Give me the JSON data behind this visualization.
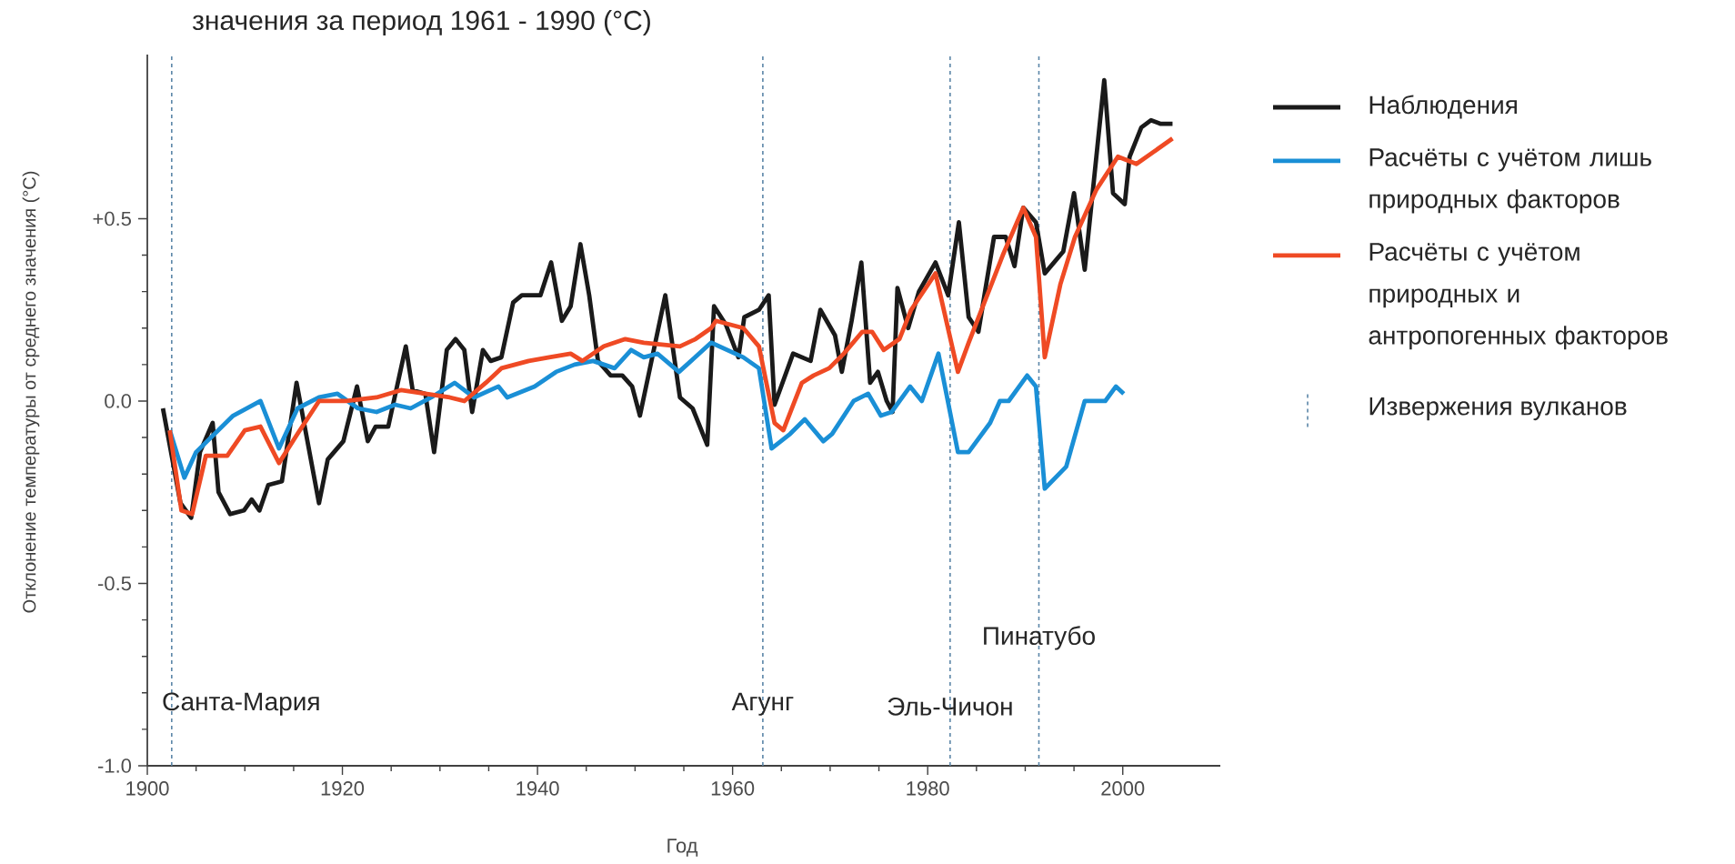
{
  "chart_data": {
    "type": "line",
    "title": "значения за период 1961 - 1990 (°C)",
    "xlabel": "Год",
    "ylabel": "Отклонение температуры от среднего значения (°C)",
    "xlim": [
      1900,
      2010
    ],
    "xticks": [
      1900,
      1920,
      1940,
      1960,
      1980,
      2000
    ],
    "ylim": [
      -1.0,
      0.95
    ],
    "yticks": [
      {
        "value": -1.0,
        "label": "-1.0"
      },
      {
        "value": -0.5,
        "label": "-0.5"
      },
      {
        "value": 0.0,
        "label": "0.0"
      },
      {
        "value": 0.5,
        "label": "+0.5"
      }
    ],
    "grid": false,
    "legend": "right",
    "marker": "none",
    "line_style": "solid",
    "series": [
      {
        "name": "Наблюдения",
        "color": "#1a1a1a",
        "x": [
          1901.6,
          1903.4,
          1904.5,
          1905.4,
          1906.7,
          1907.3,
          1908.5,
          1909.9,
          1910.7,
          1911.5,
          1912.4,
          1913.8,
          1915.3,
          1917.6,
          1918.5,
          1920.1,
          1921.5,
          1922.6,
          1923.4,
          1924.7,
          1926.5,
          1927.2,
          1928.5,
          1929.4,
          1930.7,
          1931.6,
          1932.5,
          1933.3,
          1934.4,
          1935.2,
          1936.3,
          1937.5,
          1938.4,
          1940.3,
          1941.4,
          1942.5,
          1943.4,
          1944.4,
          1945.3,
          1946.2,
          1947.5,
          1948.7,
          1949.7,
          1950.5,
          1953.1,
          1954.6,
          1955.9,
          1957.4,
          1958.1,
          1959.3,
          1960.6,
          1961.2,
          1962.7,
          1963.7,
          1964.3,
          1966.2,
          1968.0,
          1969.0,
          1970.5,
          1971.2,
          1972.2,
          1973.2,
          1974.1,
          1974.9,
          1975.8,
          1976.4,
          1976.9,
          1978.0,
          1979.1,
          1980.8,
          1982.1,
          1983.2,
          1984.2,
          1985.2,
          1986.8,
          1988.0,
          1988.9,
          1989.8,
          1991.1,
          1992.0,
          1993.9,
          1995.0,
          1996.1,
          1998.1,
          1999.0,
          2000.2,
          2000.7,
          2001.9,
          2002.9,
          2003.9,
          2005.1
        ],
        "values": [
          -0.02,
          -0.28,
          -0.32,
          -0.14,
          -0.06,
          -0.25,
          -0.31,
          -0.3,
          -0.27,
          -0.3,
          -0.23,
          -0.22,
          0.05,
          -0.28,
          -0.16,
          -0.11,
          0.04,
          -0.11,
          -0.07,
          -0.07,
          0.15,
          0.03,
          0.02,
          -0.14,
          0.14,
          0.17,
          0.14,
          -0.03,
          0.14,
          0.11,
          0.12,
          0.27,
          0.29,
          0.29,
          0.38,
          0.22,
          0.26,
          0.43,
          0.29,
          0.11,
          0.07,
          0.07,
          0.04,
          -0.04,
          0.29,
          0.01,
          -0.02,
          -0.12,
          0.26,
          0.21,
          0.12,
          0.23,
          0.25,
          0.29,
          -0.01,
          0.13,
          0.11,
          0.25,
          0.18,
          0.08,
          0.22,
          0.38,
          0.05,
          0.08,
          0.0,
          -0.03,
          0.31,
          0.2,
          0.3,
          0.38,
          0.29,
          0.49,
          0.23,
          0.19,
          0.45,
          0.45,
          0.37,
          0.53,
          0.49,
          0.35,
          0.41,
          0.57,
          0.36,
          0.88,
          0.57,
          0.54,
          0.67,
          0.75,
          0.77,
          0.76,
          0.76
        ]
      },
      {
        "name": "Расчёты с учётом лишь природных факторов",
        "color": "#1a8fd6",
        "x": [
          1902.3,
          1903.8,
          1905.0,
          1906.9,
          1908.8,
          1911.6,
          1913.5,
          1915.4,
          1917.6,
          1919.5,
          1921.6,
          1923.5,
          1925.4,
          1927.0,
          1929.1,
          1931.5,
          1933.5,
          1936.0,
          1936.9,
          1939.7,
          1941.9,
          1943.8,
          1945.7,
          1947.9,
          1949.6,
          1950.9,
          1952.3,
          1954.5,
          1957.8,
          1961.1,
          1962.7,
          1964.0,
          1965.9,
          1967.4,
          1969.3,
          1970.2,
          1972.4,
          1973.9,
          1975.2,
          1976.3,
          1978.2,
          1979.4,
          1981.1,
          1983.1,
          1984.2,
          1986.4,
          1987.4,
          1988.3,
          1990.2,
          1991.1,
          1992.0,
          1994.2,
          1996.1,
          1998.2,
          1999.3,
          2000.1
        ],
        "values": [
          -0.08,
          -0.21,
          -0.14,
          -0.09,
          -0.04,
          0.0,
          -0.13,
          -0.02,
          0.01,
          0.02,
          -0.02,
          -0.03,
          -0.01,
          -0.02,
          0.01,
          0.05,
          0.01,
          0.04,
          0.01,
          0.04,
          0.08,
          0.1,
          0.11,
          0.09,
          0.14,
          0.12,
          0.13,
          0.08,
          0.16,
          0.12,
          0.09,
          -0.13,
          -0.09,
          -0.05,
          -0.11,
          -0.09,
          0.0,
          0.02,
          -0.04,
          -0.03,
          0.04,
          0.0,
          0.13,
          -0.14,
          -0.14,
          -0.06,
          0.0,
          0.0,
          0.07,
          0.04,
          -0.24,
          -0.18,
          0.0,
          0.0,
          0.04,
          0.02
        ]
      },
      {
        "name": "Расчёты с учётом природных и антропогенных факторов",
        "color": "#ef4a24",
        "x": [
          1902.3,
          1903.5,
          1904.6,
          1906.0,
          1908.2,
          1910.0,
          1911.6,
          1913.5,
          1915.4,
          1917.6,
          1920.4,
          1923.5,
          1926.0,
          1928.5,
          1931.0,
          1932.5,
          1934.7,
          1936.3,
          1939.1,
          1941.2,
          1943.4,
          1944.6,
          1946.8,
          1949.0,
          1950.9,
          1954.6,
          1956.2,
          1957.8,
          1958.3,
          1961.1,
          1962.7,
          1964.3,
          1965.2,
          1967.1,
          1968.3,
          1969.9,
          1971.4,
          1973.3,
          1974.3,
          1975.5,
          1977.1,
          1978.3,
          1980.8,
          1983.1,
          1984.2,
          1987.7,
          1989.8,
          1991.1,
          1992.0,
          1993.6,
          1995.1,
          1997.3,
          1999.5,
          2001.4,
          2005.1
        ],
        "values": [
          -0.08,
          -0.3,
          -0.31,
          -0.15,
          -0.15,
          -0.08,
          -0.07,
          -0.17,
          -0.09,
          0.0,
          0.0,
          0.01,
          0.03,
          0.02,
          0.01,
          0.0,
          0.05,
          0.09,
          0.11,
          0.12,
          0.13,
          0.11,
          0.15,
          0.17,
          0.16,
          0.15,
          0.17,
          0.2,
          0.22,
          0.2,
          0.15,
          -0.06,
          -0.08,
          0.05,
          0.07,
          0.09,
          0.13,
          0.19,
          0.19,
          0.14,
          0.17,
          0.25,
          0.35,
          0.08,
          0.16,
          0.4,
          0.53,
          0.45,
          0.12,
          0.32,
          0.45,
          0.58,
          0.67,
          0.65,
          0.72
        ]
      }
    ],
    "ref_lines": [
      {
        "axis": "x",
        "value": 1902.5,
        "label": "Санта-Мария",
        "color": "#5b86a8",
        "line_style": "dotted"
      },
      {
        "axis": "x",
        "value": 1963.1,
        "label": "Агунг",
        "color": "#5b86a8",
        "line_style": "dotted"
      },
      {
        "axis": "x",
        "value": 1982.3,
        "label": "Эль-Чичон",
        "color": "#5b86a8",
        "line_style": "dotted"
      },
      {
        "axis": "x",
        "value": 1991.4,
        "label": "Пинатубо",
        "color": "#5b86a8",
        "line_style": "dotted"
      }
    ],
    "annotations": [
      "Извержения вулканов"
    ]
  }
}
